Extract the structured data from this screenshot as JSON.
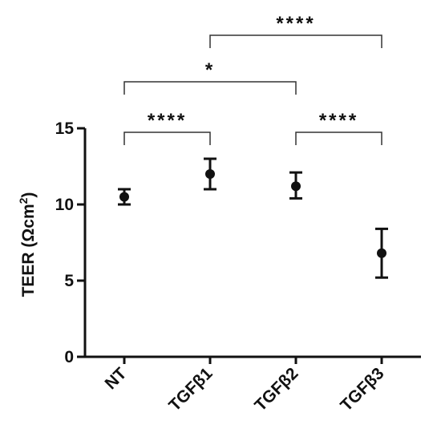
{
  "chart_data": {
    "type": "scatter",
    "categories": [
      "NT",
      "TGFβ1",
      "TGFβ2",
      "TGFβ3"
    ],
    "series": [
      {
        "values": [
          10.5,
          12.0,
          11.2,
          6.8
        ],
        "err_low": [
          10.0,
          11.0,
          10.4,
          5.2
        ],
        "err_high": [
          11.0,
          13.0,
          12.1,
          8.4
        ]
      }
    ],
    "ylabel_main": "TEER (Ωcm",
    "ylabel_sup": "2",
    "ylabel_close": ")",
    "ylim": [
      0,
      15
    ],
    "yticks": [
      "0",
      "5",
      "10",
      "15"
    ],
    "grid": false,
    "significance": [
      {
        "from": 0,
        "to": 1,
        "label": "****"
      },
      {
        "from": 2,
        "to": 3,
        "label": "****"
      },
      {
        "from": 0,
        "to": 2,
        "label": "*"
      },
      {
        "from": 1,
        "to": 3,
        "label": "****"
      }
    ]
  }
}
